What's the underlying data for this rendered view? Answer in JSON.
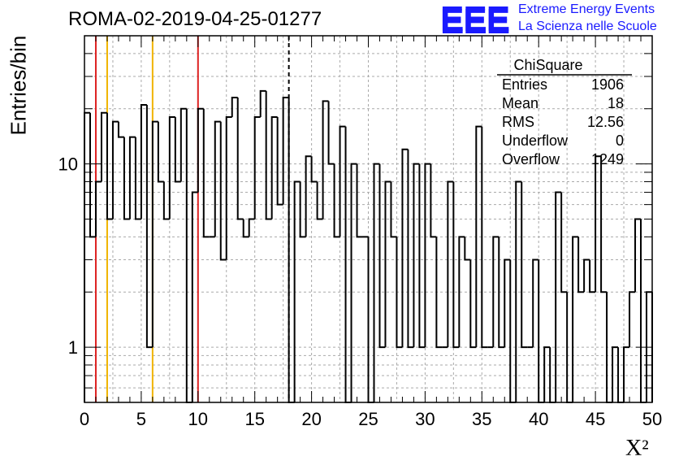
{
  "header": {
    "title": "ROMA-02-2019-04-25-01277",
    "logo_text": "EEE",
    "logo_line1": "Extreme Energy Events",
    "logo_line2": "La Scienza nelle Scuole"
  },
  "stats": {
    "name": "ChiSquare",
    "rows": [
      {
        "label": "Entries",
        "value": "1906"
      },
      {
        "label": "Mean",
        "value": "18"
      },
      {
        "label": "RMS",
        "value": "12.56"
      },
      {
        "label": "Underflow",
        "value": "0"
      },
      {
        "label": "Overflow",
        "value": "1249"
      }
    ]
  },
  "colors": {
    "histogram": "#000000",
    "red_lines": "#dd2222",
    "yellow_lines": "#f0b400",
    "logo": "#1a1aff",
    "grid": "#aaaaaa"
  },
  "chart_data": {
    "type": "bar",
    "style": "step-histogram",
    "title": "ROMA-02-2019-04-25-01277",
    "xlabel": "Χ²",
    "ylabel": "Entries/bin",
    "xlim": [
      0,
      50
    ],
    "ylim": [
      0.5,
      50
    ],
    "yscale": "log",
    "grid": true,
    "bin_width": 0.5,
    "x_ticks": [
      0,
      5,
      10,
      15,
      20,
      25,
      30,
      35,
      40,
      45,
      50
    ],
    "y_ticks": [
      1,
      10
    ],
    "values": [
      19,
      4,
      8,
      19,
      5,
      17,
      14,
      5,
      14,
      5,
      21,
      1,
      17,
      8,
      5,
      18,
      8,
      20,
      0,
      7,
      20,
      4,
      4,
      17,
      3,
      18,
      23,
      5,
      4,
      5,
      18,
      25,
      5,
      18,
      6,
      23,
      0,
      8,
      4,
      11,
      8,
      5,
      22,
      10,
      4,
      16,
      0,
      10,
      4,
      4,
      0,
      10,
      1,
      8,
      4,
      1,
      12,
      1,
      10,
      1,
      10,
      4,
      1,
      1,
      8,
      1,
      4,
      3,
      1,
      16,
      1,
      1,
      4,
      1,
      3,
      0,
      8,
      1,
      1,
      3,
      0,
      1,
      0,
      7,
      2,
      0,
      4,
      2,
      3,
      2,
      11,
      2,
      0,
      1,
      0,
      1,
      2,
      5,
      0,
      2
    ],
    "vlines": [
      {
        "x": 1,
        "color": "#dd2222",
        "style": "solid"
      },
      {
        "x": 2,
        "color": "#f0b400",
        "style": "solid"
      },
      {
        "x": 6,
        "color": "#f0b400",
        "style": "solid"
      },
      {
        "x": 10,
        "color": "#dd2222",
        "style": "solid"
      },
      {
        "x": 18,
        "color": "#000000",
        "style": "dashed"
      }
    ],
    "legend": "stats box top-right"
  }
}
